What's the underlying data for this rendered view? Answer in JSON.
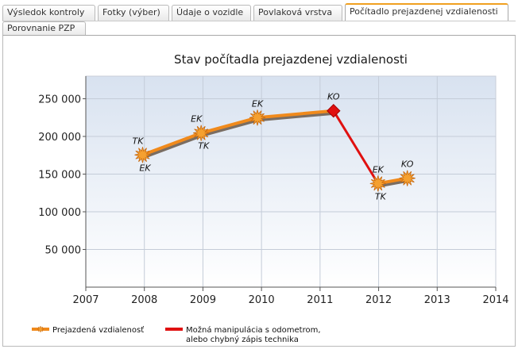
{
  "tabs": [
    {
      "label": "Výsledok kontroly",
      "active": false
    },
    {
      "label": "Fotky (výber)",
      "active": false
    },
    {
      "label": "Údaje o vozidle",
      "active": false
    },
    {
      "label": "Povlaková vrstva",
      "active": false
    },
    {
      "label": "Počítadlo prejazdenej vzdialenosti",
      "active": true
    },
    {
      "label": "Porovnanie PZP",
      "active": false
    }
  ],
  "chart_data": {
    "type": "line",
    "title": "Stav počítadla prejazdenej vzdialenosti",
    "xlim": [
      2007,
      2014
    ],
    "ylim": [
      0,
      280000
    ],
    "x_ticks": [
      2007,
      2008,
      2009,
      2010,
      2011,
      2012,
      2013,
      2014
    ],
    "x_tick_labels": [
      "2007",
      "2008",
      "2009",
      "2010",
      "2011",
      "2012",
      "2013",
      "2014"
    ],
    "y_ticks": [
      50000,
      100000,
      150000,
      200000,
      250000
    ],
    "y_tick_labels": [
      "50 000",
      "100 000",
      "150 000",
      "200 000",
      "250 000"
    ],
    "series": [
      {
        "name": "Prejazdená vzdialenosť",
        "color": "#f08a1c",
        "segments": [
          [
            {
              "x": 2007.97,
              "y": 175500
            },
            {
              "x": 2008.97,
              "y": 204500
            },
            {
              "x": 2009.93,
              "y": 225000
            },
            {
              "x": 2011.23,
              "y": 234000
            }
          ],
          [
            {
              "x": 2011.99,
              "y": 137500
            },
            {
              "x": 2012.49,
              "y": 144500
            }
          ]
        ]
      },
      {
        "name": "Možná manipulácia s odometrom, alebo chybný zápis technika",
        "color": "#e01010",
        "segments": [
          [
            {
              "x": 2011.23,
              "y": 234000
            },
            {
              "x": 2011.99,
              "y": 137500
            }
          ]
        ]
      }
    ],
    "markers": [
      {
        "x": 2007.97,
        "y": 175500,
        "shape": "star",
        "labels": [
          {
            "text": "TK",
            "pos": "above-left"
          },
          {
            "text": "EK",
            "pos": "below"
          }
        ]
      },
      {
        "x": 2008.97,
        "y": 204500,
        "shape": "star",
        "labels": [
          {
            "text": "EK",
            "pos": "above-left"
          },
          {
            "text": "TK",
            "pos": "below"
          }
        ]
      },
      {
        "x": 2009.93,
        "y": 225000,
        "shape": "star",
        "labels": [
          {
            "text": "EK",
            "pos": "above"
          }
        ]
      },
      {
        "x": 2011.23,
        "y": 234000,
        "shape": "diamond",
        "labels": [
          {
            "text": "KO",
            "pos": "above"
          }
        ]
      },
      {
        "x": 2011.99,
        "y": 137500,
        "shape": "star",
        "labels": [
          {
            "text": "EK",
            "pos": "above"
          },
          {
            "text": "TK",
            "pos": "below"
          }
        ]
      },
      {
        "x": 2012.49,
        "y": 144500,
        "shape": "star",
        "labels": [
          {
            "text": "KO",
            "pos": "above"
          }
        ]
      }
    ],
    "legend": [
      {
        "label": "Prejazdená vzdialenosť",
        "color": "#f08a1c",
        "lines": [
          "Prejazdená vzdialenosť"
        ]
      },
      {
        "label": "Možná manipulácia s odometrom, alebo chybný zápis technika",
        "color": "#e01010",
        "lines": [
          "Možná manipulácia s odometrom,",
          "alebo chybný zápis technika"
        ]
      }
    ],
    "legend_position": "bottom-left"
  }
}
